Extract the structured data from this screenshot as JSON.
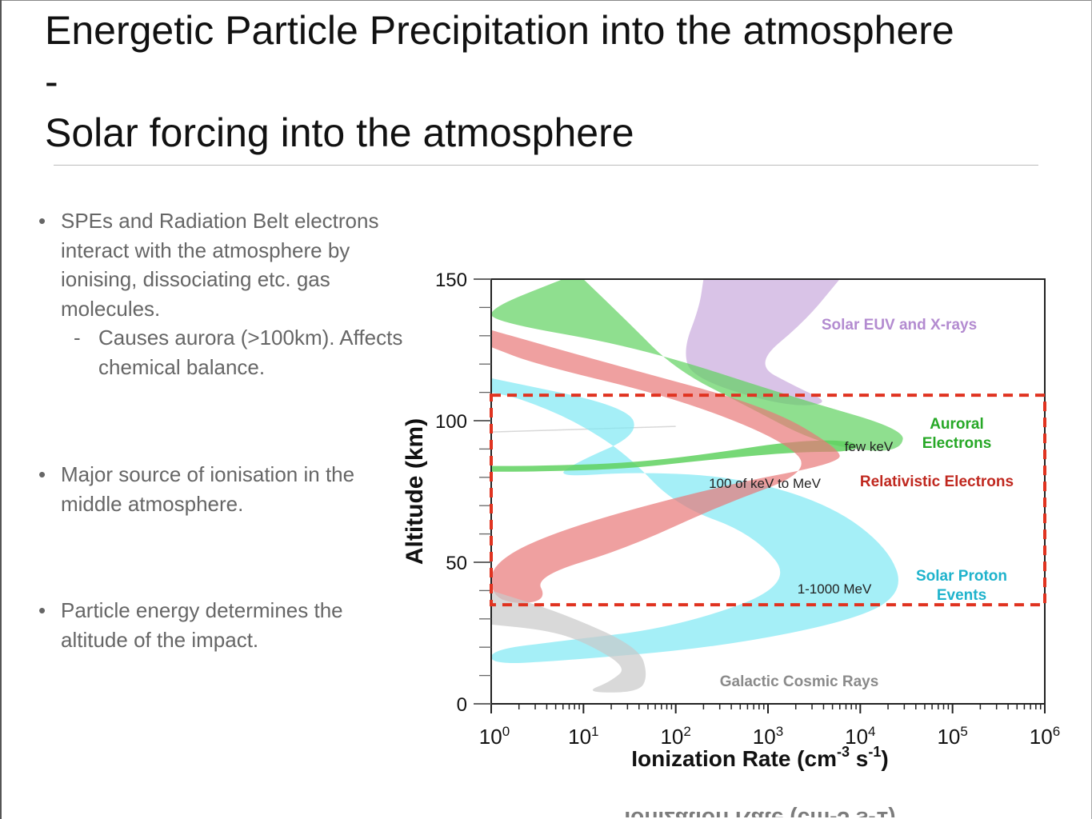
{
  "slide": {
    "title_lines": [
      "Energetic Particle Precipitation into the atmosphere",
      "-",
      "Solar forcing into the atmosphere"
    ],
    "bullets": [
      {
        "text": "SPEs and Radiation Belt electrons interact with the atmosphere by ionising, dissociating etc. gas molecules."
      },
      {
        "sub": "Causes aurora (>100km). Affects chemical balance."
      },
      {
        "text": "Major source of ionisation in the middle atmosphere."
      },
      {
        "text": "Particle energy determines the altitude of the impact."
      }
    ],
    "bullet_glyph": "•",
    "dash_glyph": "-"
  },
  "chart_data": {
    "type": "area",
    "xlabel": "Ionization Rate (cm-3 s-1)",
    "ylabel": "Altitude (km)",
    "xscale": "log",
    "xlim": [
      1,
      1000000
    ],
    "ylim": [
      0,
      150
    ],
    "x_ticks": [
      "10^0",
      "10^1",
      "10^2",
      "10^3",
      "10^4",
      "10^5",
      "10^6"
    ],
    "y_ticks": [
      "0",
      "50",
      "100",
      "150"
    ],
    "series": [
      {
        "name": "Solar EUV and X-rays",
        "color": "#c9a9dd",
        "left": [
          [
            200,
            150
          ],
          [
            180,
            140
          ],
          [
            120,
            125
          ],
          [
            150,
            115
          ],
          [
            1500,
            105
          ],
          [
            5000,
            106
          ],
          [
            2000,
            112
          ],
          [
            700,
            120
          ],
          [
            2500,
            135
          ],
          [
            6000,
            150
          ]
        ]
      },
      {
        "name": "Auroral Electrons",
        "color": "#5fd15f",
        "left": [
          [
            6,
            150
          ],
          [
            1,
            140
          ],
          [
            1,
            135
          ],
          [
            40,
            126
          ],
          [
            2000,
            108
          ],
          [
            30000,
            97
          ],
          [
            28000,
            90
          ],
          [
            12000,
            89
          ],
          [
            3000,
            93
          ],
          [
            600,
            105
          ],
          [
            100,
            118
          ],
          [
            30,
            135
          ],
          [
            10,
            150
          ]
        ],
        "tail": [
          [
            1,
            84
          ],
          [
            3,
            84
          ],
          [
            30,
            85
          ],
          [
            200,
            88
          ],
          [
            2000,
            93
          ],
          [
            9000,
            93
          ],
          [
            9000,
            89
          ],
          [
            2000,
            89
          ],
          [
            200,
            86
          ],
          [
            30,
            83
          ],
          [
            3,
            82
          ],
          [
            1,
            82
          ]
        ]
      },
      {
        "name": "Relativistic Electrons",
        "color": "#e87878",
        "left": [
          [
            1,
            132
          ],
          [
            20,
            120
          ],
          [
            1000,
            105
          ],
          [
            6000,
            90
          ],
          [
            6000,
            85
          ],
          [
            300,
            77
          ],
          [
            6,
            62
          ],
          [
            1,
            50
          ],
          [
            1,
            38
          ],
          [
            2,
            35
          ],
          [
            4,
            37
          ],
          [
            3,
            45
          ],
          [
            30,
            55
          ],
          [
            300,
            70
          ],
          [
            3000,
            82
          ],
          [
            1500,
            93
          ],
          [
            100,
            108
          ],
          [
            3,
            120
          ],
          [
            1,
            126
          ]
        ]
      },
      {
        "name": "Solar Proton Events",
        "color": "#7fe8f4",
        "left": [
          [
            1,
            115
          ],
          [
            30,
            105
          ],
          [
            40,
            95
          ],
          [
            8,
            85
          ],
          [
            5,
            80
          ],
          [
            40,
            82
          ],
          [
            500,
            80
          ],
          [
            5000,
            70
          ],
          [
            20000,
            55
          ],
          [
            30000,
            40
          ],
          [
            10000,
            30
          ],
          [
            300,
            20
          ],
          [
            5,
            15
          ],
          [
            1,
            14
          ],
          [
            1,
            19
          ],
          [
            5,
            22
          ],
          [
            100,
            27
          ],
          [
            2000,
            42
          ],
          [
            700,
            60
          ],
          [
            100,
            70
          ],
          [
            30,
            88
          ],
          [
            8,
            100
          ],
          [
            2,
            108
          ],
          [
            1,
            110
          ]
        ]
      },
      {
        "name": "Galactic Cosmic Rays",
        "color": "#c9c9c9",
        "left": [
          [
            1,
            40
          ],
          [
            6,
            32
          ],
          [
            40,
            20
          ],
          [
            50,
            10
          ],
          [
            40,
            4
          ],
          [
            10,
            4
          ],
          [
            20,
            8
          ],
          [
            30,
            13
          ],
          [
            10,
            22
          ],
          [
            4,
            26
          ],
          [
            1,
            28
          ]
        ]
      }
    ],
    "annotations": [
      {
        "text": "few keV"
      },
      {
        "text": "100 of keV to MeV"
      },
      {
        "text": "1-1000 MeV"
      }
    ],
    "highlight_box": {
      "x_range": [
        1,
        1000000
      ],
      "y_range": [
        35,
        109
      ],
      "style": "dashed",
      "color": "#e03320"
    }
  }
}
